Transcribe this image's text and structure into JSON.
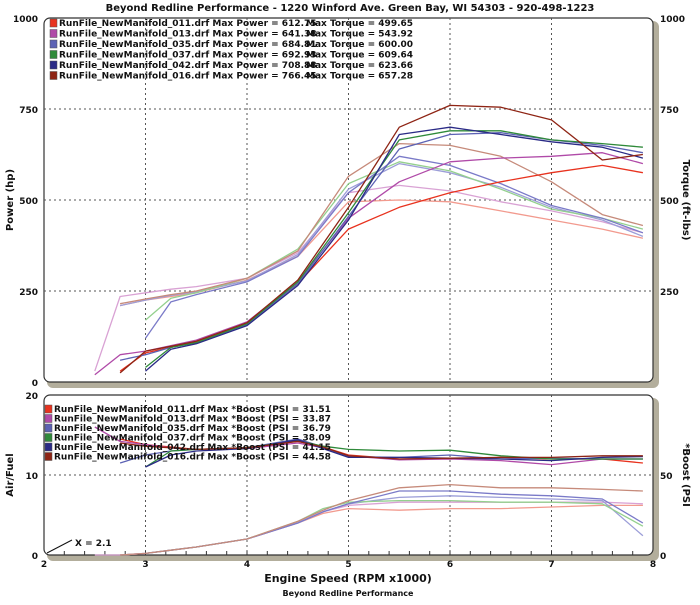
{
  "chart_data": [
    {
      "type": "line",
      "title": "Beyond Redline Performance - 1220 Winford Ave. Green Bay, WI 54303 - 920-498-1223",
      "ylabel": "Power (hp)",
      "y2label": "Torque (ft-lbs)",
      "ylim": [
        0,
        1000
      ],
      "y2lim": [
        0,
        1000
      ],
      "yticks": [
        "0",
        "250",
        "500",
        "750",
        "1000"
      ],
      "y2ticks": [
        "250",
        "500",
        "750",
        "1000"
      ],
      "grid": true,
      "legend_position": "top-left",
      "x": [
        2.5,
        2.75,
        3,
        3.25,
        3.5,
        4,
        4.5,
        5,
        5.5,
        6,
        6.5,
        7,
        7.5,
        7.9
      ],
      "series": [
        {
          "name": "RunFile_NewManifold_011.drf",
          "legend": "RunFile_NewManifold_011.drf Max Power = 612.75",
          "legend2": "Max Torque = 499.65",
          "color": "#e8321e",
          "light": "#f29a8e",
          "power": [
            null,
            30,
            80,
            95,
            110,
            160,
            270,
            420,
            480,
            520,
            550,
            575,
            595,
            575
          ],
          "torque": [
            null,
            210,
            225,
            235,
            245,
            280,
            345,
            495,
            500,
            495,
            470,
            445,
            420,
            395
          ]
        },
        {
          "name": "RunFile_NewManifold_013.drf",
          "legend": "RunFile_NewManifold_013.drf Max Power = 641.38",
          "legend2": "Max Torque = 543.92",
          "color": "#b04aa8",
          "light": "#d9a2d4",
          "power": [
            20,
            75,
            85,
            100,
            115,
            165,
            275,
            450,
            550,
            605,
            615,
            620,
            630,
            600
          ],
          "torque": [
            30,
            235,
            245,
            255,
            262,
            285,
            355,
            520,
            540,
            525,
            495,
            470,
            440,
            410
          ]
        },
        {
          "name": "RunFile_NewManifold_035.drf",
          "legend": "RunFile_NewManifold_035.drf Max Power = 684.81",
          "legend2": "Max Torque = 600.00",
          "color": "#5c62b4",
          "light": "#9c9ed8",
          "power": [
            null,
            60,
            75,
            95,
            108,
            158,
            270,
            455,
            640,
            680,
            685,
            665,
            650,
            630
          ],
          "torque": [
            null,
            210,
            225,
            238,
            248,
            278,
            350,
            530,
            600,
            575,
            535,
            480,
            445,
            400
          ]
        },
        {
          "name": "RunFile_NewManifold_037.drf",
          "legend": "RunFile_NewManifold_037.drf Max Power = 692.93",
          "legend2": "Max Torque = 609.64",
          "color": "#2f8a3a",
          "light": "#94d08e",
          "power": [
            null,
            null,
            40,
            95,
            108,
            160,
            275,
            465,
            665,
            690,
            690,
            665,
            655,
            645
          ],
          "torque": [
            null,
            null,
            170,
            230,
            245,
            285,
            365,
            545,
            605,
            580,
            530,
            475,
            450,
            420
          ]
        },
        {
          "name": "RunFile_NewManifold_042.drf",
          "legend": "RunFile_NewManifold_042.drf Max Power = 708.88",
          "legend2": "Max Torque = 623.66",
          "color": "#2a2a86",
          "light": "#7a7ac8",
          "power": [
            null,
            null,
            30,
            90,
            105,
            155,
            265,
            445,
            680,
            700,
            680,
            660,
            645,
            615
          ],
          "torque": [
            null,
            null,
            120,
            220,
            240,
            275,
            345,
            520,
            620,
            595,
            545,
            485,
            450,
            410
          ]
        },
        {
          "name": "RunFile_NewManifold_016.drf",
          "legend": "RunFile_NewManifold_016.drf Max Power = 766.45",
          "legend2": "Max Torque = 657.28",
          "color": "#8e2414",
          "light": "#c68a7a",
          "power": [
            null,
            25,
            85,
            98,
            112,
            163,
            280,
            480,
            700,
            760,
            755,
            720,
            610,
            625
          ],
          "torque": [
            null,
            215,
            228,
            240,
            250,
            285,
            360,
            565,
            655,
            650,
            620,
            550,
            460,
            430
          ]
        }
      ]
    },
    {
      "type": "line",
      "xlabel": "Engine Speed (RPM x1000)",
      "ylabel": "Air/Fuel",
      "y2label": "*Boost (PSI",
      "ylim": [
        0,
        20
      ],
      "y2lim": [
        0,
        100
      ],
      "yticks": [
        "0",
        "10",
        "20"
      ],
      "y2ticks": [
        "0",
        "50"
      ],
      "xticks": [
        "2",
        "3",
        "4",
        "5",
        "6",
        "7",
        "8"
      ],
      "xlim": [
        2,
        8
      ],
      "annotation": "X = 2.1",
      "legend_position": "top-left",
      "x": [
        2.5,
        2.75,
        3,
        3.25,
        3.5,
        4,
        4.5,
        4.75,
        5,
        5.5,
        6,
        6.5,
        7,
        7.5,
        7.9
      ],
      "series": [
        {
          "legend": "RunFile_NewManifold_011.drf Max *Boost (PSI = 31.51",
          "color": "#e8321e",
          "light": "#f29a8e",
          "afr": [
            null,
            14.5,
            13.8,
            13.5,
            13.2,
            13.4,
            14.2,
            13.5,
            12.5,
            12.0,
            12.0,
            12.2,
            12.0,
            12.0,
            11.5
          ],
          "boost": [
            null,
            0,
            1,
            3,
            5,
            10,
            20,
            26,
            29,
            28,
            29,
            29,
            30,
            31,
            31
          ]
        },
        {
          "legend": "RunFile_NewManifold_013.drf Max *Boost (PSI = 33.87",
          "color": "#b04aa8",
          "light": "#d9a2d4",
          "afr": [
            16,
            14.2,
            13.8,
            13.4,
            13.2,
            13.3,
            14.0,
            13.4,
            12.4,
            11.9,
            12.0,
            11.8,
            11.3,
            12.0,
            12.0
          ],
          "boost": [
            0,
            0,
            1,
            3,
            5,
            10,
            20,
            27,
            31,
            33,
            33,
            33,
            33,
            33,
            32
          ]
        },
        {
          "legend": "RunFile_NewManifold_035.drf Max *Boost (PSI = 36.79",
          "color": "#5c62b4",
          "light": "#9c9ed8",
          "afr": [
            null,
            11.5,
            12.5,
            13.0,
            13.2,
            13.4,
            14.5,
            13.5,
            12.3,
            12.2,
            12.5,
            12.0,
            12.1,
            12.0,
            12.0
          ],
          "boost": [
            null,
            0,
            1,
            3,
            5,
            10,
            20,
            27,
            32,
            36,
            37,
            36,
            35,
            34,
            12
          ]
        },
        {
          "legend": "RunFile_NewManifold_037.drf Max *Boost (PSI = 38.09",
          "color": "#2f8a3a",
          "light": "#94d08e",
          "afr": [
            null,
            null,
            11.0,
            13.0,
            13.2,
            13.4,
            14.3,
            13.6,
            13.2,
            13.0,
            13.1,
            12.4,
            12.0,
            12.0,
            12.0
          ],
          "boost": [
            null,
            null,
            1,
            3,
            5,
            10,
            21,
            29,
            33,
            34,
            34,
            33,
            33,
            32,
            18
          ]
        },
        {
          "legend": "RunFile_NewManifold_042.drf Max *Boost (PSI = 41.15",
          "color": "#2a2a86",
          "light": "#7a7ac8",
          "afr": [
            null,
            null,
            11.0,
            12.5,
            13.0,
            13.3,
            14.4,
            13.3,
            12.2,
            12.2,
            12.1,
            12.0,
            11.8,
            12.2,
            12.3
          ],
          "boost": [
            null,
            null,
            1,
            3,
            5,
            10,
            20,
            27,
            32,
            40,
            40,
            38,
            37,
            35,
            20
          ]
        },
        {
          "legend": "RunFile_NewManifold_016.drf Max *Boost (PSI = 44.58",
          "color": "#8e2414",
          "light": "#c68a7a",
          "afr": [
            null,
            14.0,
            13.6,
            13.4,
            13.2,
            13.4,
            14.2,
            13.5,
            12.4,
            12.0,
            12.1,
            12.2,
            12.2,
            12.4,
            12.4
          ],
          "boost": [
            null,
            0,
            1,
            3,
            5,
            10,
            21,
            28,
            34,
            42,
            44,
            42,
            42,
            41,
            40
          ]
        }
      ]
    }
  ],
  "footer": "Beyond Redline Performance"
}
